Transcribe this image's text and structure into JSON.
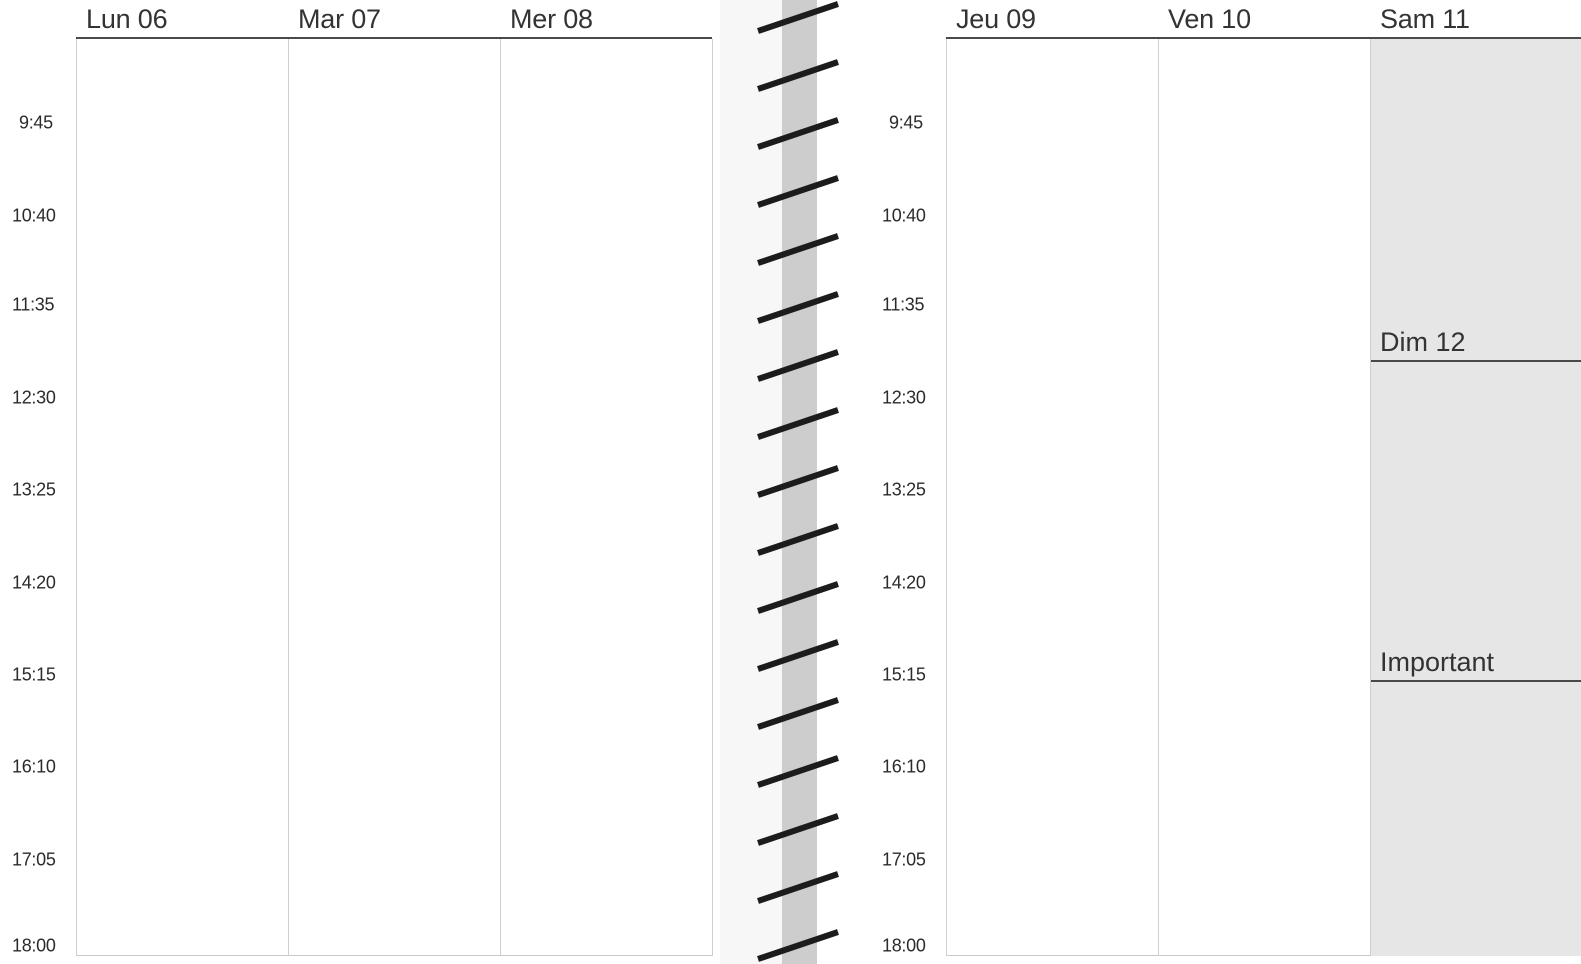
{
  "left_page": {
    "days": [
      "Lun 06",
      "Mar 07",
      "Mer 08"
    ],
    "times": [
      "9:45",
      "10:40",
      "11:35",
      "12:30",
      "13:25",
      "14:20",
      "15:15",
      "16:10",
      "17:05",
      "18:00"
    ]
  },
  "right_page": {
    "days": [
      "Jeu 09",
      "Ven 10"
    ],
    "times": [
      "9:45",
      "10:40",
      "11:35",
      "12:30",
      "13:25",
      "14:20",
      "15:15",
      "16:10",
      "17:05",
      "18:00"
    ],
    "weekend": {
      "saturday": "Sam 11",
      "sunday": "Dim 12",
      "notes": "Important"
    }
  },
  "colors": {
    "weekend_fill": "#e6e6e7",
    "binding_fill": "#cdcdcd",
    "rule_line": "#4a4a4a"
  }
}
